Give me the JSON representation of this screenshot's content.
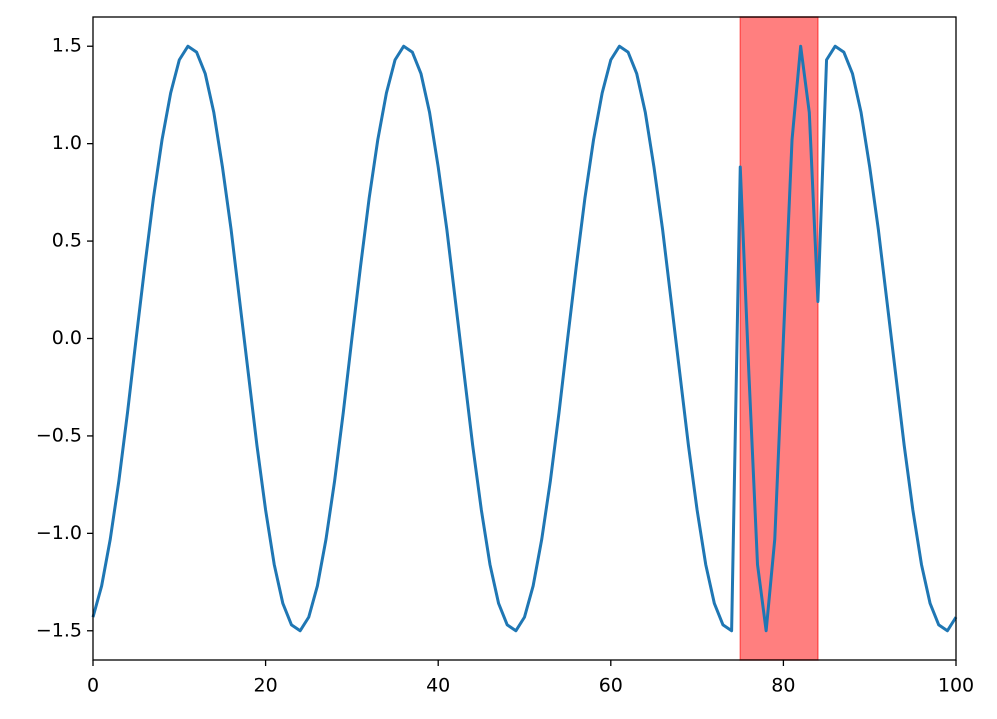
{
  "chart_data": {
    "type": "line",
    "x": [
      0,
      1,
      2,
      3,
      4,
      5,
      6,
      7,
      8,
      9,
      10,
      11,
      12,
      13,
      14,
      15,
      16,
      17,
      18,
      19,
      20,
      21,
      22,
      23,
      24,
      25,
      26,
      27,
      28,
      29,
      30,
      31,
      32,
      33,
      34,
      35,
      36,
      37,
      38,
      39,
      40,
      41,
      42,
      43,
      44,
      45,
      46,
      47,
      48,
      49,
      50,
      51,
      52,
      53,
      54,
      55,
      56,
      57,
      58,
      59,
      60,
      61,
      62,
      63,
      64,
      65,
      66,
      67,
      68,
      69,
      70,
      71,
      72,
      73,
      74,
      75,
      76,
      77,
      78,
      79,
      80,
      81,
      82,
      83,
      84,
      85,
      86,
      87,
      88,
      89,
      90,
      91,
      92,
      93,
      94,
      95,
      96,
      97,
      98,
      99,
      100
    ],
    "series": [
      {
        "color": "#1f77b4",
        "values": [
          -1.43,
          -1.27,
          -1.03,
          -0.73,
          -0.38,
          0.0,
          0.37,
          0.72,
          1.02,
          1.26,
          1.43,
          1.5,
          1.47,
          1.36,
          1.16,
          0.88,
          0.56,
          0.19,
          -0.18,
          -0.55,
          -0.88,
          -1.16,
          -1.36,
          -1.47,
          -1.5,
          -1.43,
          -1.27,
          -1.03,
          -0.73,
          -0.38,
          0.0,
          0.37,
          0.72,
          1.02,
          1.26,
          1.43,
          1.5,
          1.47,
          1.36,
          1.16,
          0.88,
          0.56,
          0.19,
          -0.18,
          -0.55,
          -0.88,
          -1.16,
          -1.36,
          -1.47,
          -1.5,
          -1.43,
          -1.27,
          -1.03,
          -0.73,
          -0.38,
          0.0,
          0.37,
          0.72,
          1.02,
          1.26,
          1.43,
          1.5,
          1.47,
          1.36,
          1.16,
          0.88,
          0.56,
          0.19,
          -0.18,
          -0.55,
          -0.88,
          -1.16,
          -1.36,
          -1.47,
          -1.5,
          0.88,
          -0.18,
          -1.16,
          -1.5,
          -1.03,
          0.0,
          1.02,
          1.5,
          1.16,
          0.19,
          1.43,
          1.5,
          1.47,
          1.36,
          1.16,
          0.88,
          0.56,
          0.19,
          -0.18,
          -0.55,
          -0.88,
          -1.16,
          -1.36,
          -1.47,
          -1.5,
          -1.43
        ]
      }
    ],
    "highlight": {
      "xmin": 75,
      "xmax": 84,
      "color": "#ff0000"
    },
    "xlim": [
      0,
      100
    ],
    "xticks": [
      0,
      20,
      40,
      60,
      80,
      100
    ],
    "ylim": [
      -1.65,
      1.65
    ],
    "yticks": [
      {
        "value": -1.5,
        "label": "−1.5"
      },
      {
        "value": -1.0,
        "label": "−1.0"
      },
      {
        "value": -0.5,
        "label": "−0.5"
      },
      {
        "value": 0,
        "label": "0.0"
      },
      0.5,
      {
        "value": 1.0,
        "label": "1.0"
      },
      1.5
    ]
  }
}
